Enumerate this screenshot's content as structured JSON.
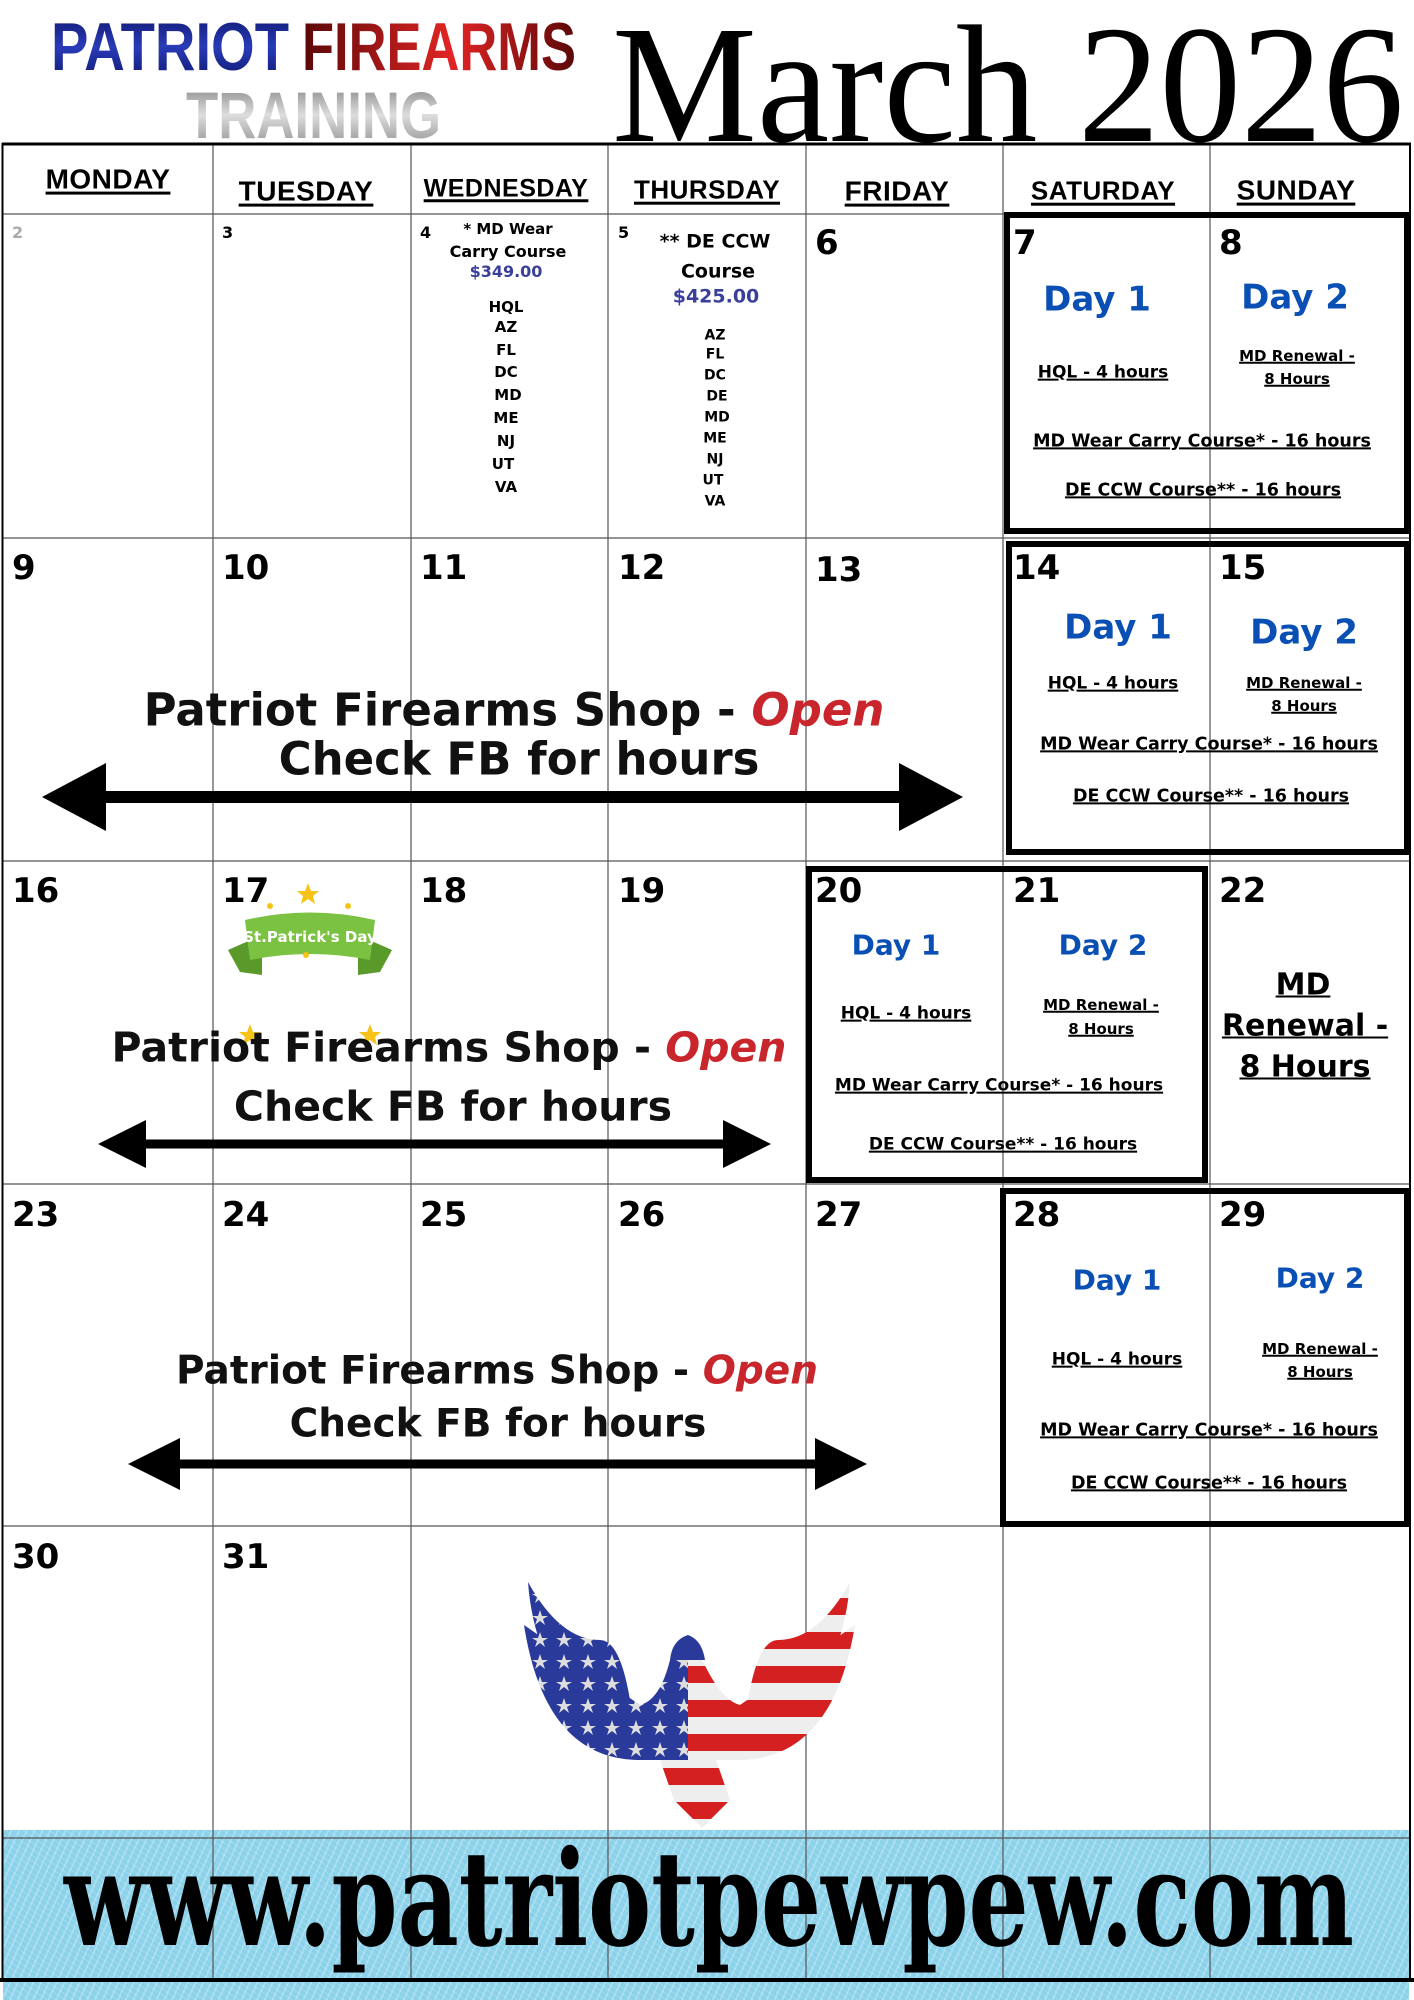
{
  "header": {
    "logo_word1": "PATRIOT",
    "logo_word2": "FIREARMS",
    "logo_word3": "TRAINING",
    "month_title": "March 2026"
  },
  "weekdays": [
    "MONDAY",
    "TUESDAY",
    "WEDNESDAY",
    "THURSDAY",
    "FRIDAY",
    "SATURDAY",
    "SUNDAY"
  ],
  "days": [
    "2",
    "3",
    "4",
    "5",
    "6",
    "7",
    "8",
    "9",
    "10",
    "11",
    "12",
    "13",
    "14",
    "15",
    "16",
    "17",
    "18",
    "19",
    "20",
    "21",
    "22",
    "23",
    "24",
    "25",
    "26",
    "27",
    "28",
    "29",
    "30",
    "31"
  ],
  "wed_course": {
    "title_line1": "* MD Wear",
    "title_line2": "Carry Course",
    "price": "$349.00",
    "states": [
      "HQL",
      "AZ",
      "FL",
      "DC",
      "MD",
      "ME",
      "NJ",
      "UT",
      "VA"
    ]
  },
  "thu_course": {
    "title_line1": "** DE CCW",
    "title_line2": "Course",
    "price": "$425.00",
    "states": [
      "AZ",
      "FL",
      "DC",
      "DE",
      "MD",
      "ME",
      "NJ",
      "UT",
      "VA"
    ]
  },
  "weekend_blocks": [
    {
      "day1": "Day 1",
      "day2": "Day 2",
      "hql": "HQL - 4 hours",
      "renewal_line1": "MD Renewal - ",
      "renewal_line2": "8 Hours",
      "wear_carry": "MD Wear Carry Course* - 16 hours",
      "de_ccw": "DE CCW Course** - 16 hours"
    },
    {
      "day1": "Day 1",
      "day2": "Day 2",
      "hql": "HQL - 4 hours",
      "renewal_line1": "MD Renewal - ",
      "renewal_line2": "8 Hours",
      "wear_carry": "MD Wear Carry Course* - 16 hours",
      "de_ccw": "DE CCW Course** - 16 hours"
    },
    {
      "day1": "Day 1",
      "day2": "Day 2",
      "hql": "HQL - 4 hours",
      "renewal_line1": "MD Renewal - ",
      "renewal_line2": "8 Hours",
      "wear_carry": "MD Wear Carry Course* - 16 hours",
      "de_ccw": "DE CCW Course** - 16 hours"
    },
    {
      "day1": "Day 1",
      "day2": "Day 2",
      "hql": "HQL - 4 hours",
      "renewal_line1": "MD Renewal - ",
      "renewal_line2": "8 Hours",
      "wear_carry": "MD Wear Carry Course* - 16 hours",
      "de_ccw": "DE CCW Course** - 16 hours"
    }
  ],
  "day22_event": {
    "line1": "MD ",
    "line2": "Renewal - ",
    "line3": "8 Hours"
  },
  "shop_banner": {
    "shop_text": "Patriot Firearms Shop - ",
    "open_text": "Open",
    "hours_text": "Check FB for hours"
  },
  "holiday": {
    "label": "St.Patrick's Day"
  },
  "footer": {
    "url": "www.patriotpewpew.com"
  },
  "colors": {
    "day_label": "#0a4fb4",
    "price": "#3a3f9a",
    "open": "#c8262c",
    "footer_band": "#8ad1ea",
    "logo_blue": "#1a2a9a",
    "logo_red": "#b01818"
  },
  "icons": [
    "double-arrow-icon",
    "eagle-flag-icon",
    "shamrock-banner-icon"
  ]
}
